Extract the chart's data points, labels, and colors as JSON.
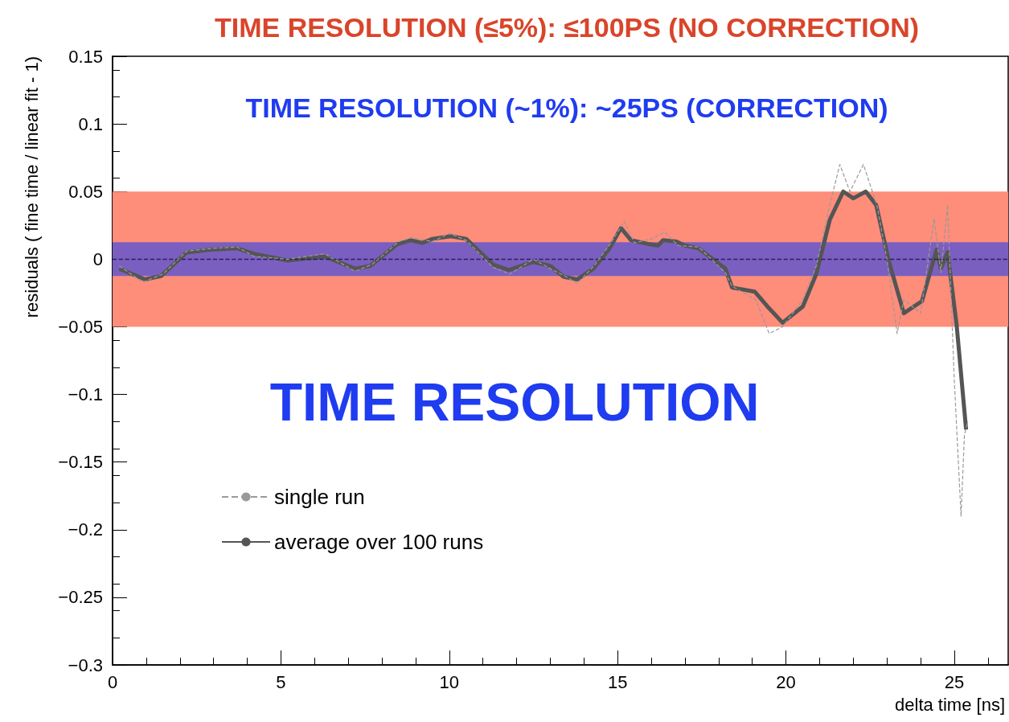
{
  "chart_data": {
    "type": "line",
    "title": "TIME RESOLUTION (≤5%): ≤100PS (NO CORRECTION)",
    "subtitle": "TIME RESOLUTION (~1%): ~25PS (CORRECTION)",
    "annotations": [
      "TIME RESOLUTION"
    ],
    "xlabel": "delta time [ns]",
    "ylabel": "residuals ( fine time / linear fit - 1)",
    "xlim": [
      0,
      26.6
    ],
    "xticks": [
      0,
      5,
      10,
      15,
      20,
      25
    ],
    "ylim": [
      -0.3,
      0.15
    ],
    "yticks": [
      {
        "value": -0.3,
        "label": "−0.3"
      },
      {
        "value": -0.25,
        "label": "−0.25"
      },
      {
        "value": -0.2,
        "label": "−0.2"
      },
      {
        "value": -0.15,
        "label": "−0.15"
      },
      {
        "value": -0.1,
        "label": "−0.1"
      },
      {
        "value": -0.05,
        "label": "−0.05"
      },
      0,
      0.05,
      0.1,
      0.15
    ],
    "grid": false,
    "legend": "bottom left",
    "bands": [
      {
        "axis": "y",
        "from": -0.05,
        "to": 0.05,
        "color": "#fe8d7a"
      },
      {
        "axis": "y",
        "from": -0.0125,
        "to": 0.0125,
        "color": "#7b5fc0"
      }
    ],
    "ref_lines": [
      {
        "axis": "y",
        "value": 0,
        "color": "#2a1f5e",
        "line_style": "dashed"
      }
    ],
    "series": [
      {
        "name": "single run",
        "color": "#9a9a9a",
        "line_style": "dashed",
        "x": [
          0.2,
          0.9,
          1.5,
          2.2,
          3.0,
          3.7,
          4.2,
          5.2,
          6.3,
          7.2,
          7.7,
          8.5,
          8.9,
          9.5,
          10.0,
          10.5,
          11.3,
          11.8,
          12.5,
          13.0,
          13.4,
          13.8,
          14.3,
          14.8,
          15.2,
          15.5,
          16.0,
          16.4,
          16.8,
          17.4,
          18.2,
          18.4,
          19.1,
          19.5,
          19.9,
          20.5,
          20.9,
          21.3,
          21.6,
          21.9,
          22.3,
          22.7,
          23.0,
          23.3,
          23.5,
          24.0,
          24.4,
          24.6,
          24.8,
          25.0,
          25.2,
          25.3,
          25.4
        ],
        "values": [
          -0.005,
          -0.017,
          -0.011,
          0.006,
          0.008,
          0.009,
          0.002,
          0.0,
          0.004,
          -0.009,
          -0.004,
          0.013,
          0.016,
          0.013,
          0.019,
          0.014,
          -0.006,
          -0.011,
          0.0,
          -0.007,
          -0.012,
          -0.018,
          -0.005,
          0.012,
          0.028,
          0.012,
          0.015,
          0.02,
          0.01,
          0.009,
          -0.01,
          -0.02,
          -0.03,
          -0.055,
          -0.05,
          -0.03,
          -0.005,
          0.04,
          0.07,
          0.05,
          0.07,
          0.04,
          0.0,
          -0.055,
          -0.03,
          -0.04,
          0.03,
          -0.01,
          0.04,
          -0.09,
          -0.19,
          -0.13,
          -0.12
        ]
      },
      {
        "name": "average over 100 runs",
        "color": "#555555",
        "line_style": "solid",
        "x": [
          0.2,
          0.96,
          1.44,
          2.2,
          2.9,
          3.7,
          4.2,
          5.2,
          6.3,
          7.2,
          7.65,
          8.45,
          8.85,
          9.2,
          9.5,
          10.05,
          10.5,
          11.3,
          11.77,
          12.5,
          13.0,
          13.4,
          13.8,
          14.28,
          14.76,
          15.1,
          15.4,
          15.95,
          16.2,
          16.35,
          16.75,
          17.0,
          17.4,
          18.2,
          18.4,
          19.07,
          19.45,
          19.9,
          20.5,
          20.9,
          21.3,
          21.7,
          22.0,
          22.37,
          22.68,
          23.05,
          23.5,
          24.04,
          24.47,
          24.6,
          24.8,
          25.07,
          25.35
        ],
        "values": [
          -0.007,
          -0.015,
          -0.0125,
          0.005,
          0.007,
          0.008,
          0.004,
          -0.001,
          0.002,
          -0.007,
          -0.005,
          0.011,
          0.014,
          0.012,
          0.015,
          0.017,
          0.015,
          -0.004,
          -0.008,
          -0.002,
          -0.005,
          -0.013,
          -0.015,
          -0.007,
          0.008,
          0.023,
          0.014,
          0.011,
          0.01,
          0.014,
          0.013,
          0.01,
          0.008,
          -0.007,
          -0.021,
          -0.024,
          -0.035,
          -0.047,
          -0.035,
          -0.011,
          0.029,
          0.05,
          0.045,
          0.05,
          0.04,
          -0.001,
          -0.04,
          -0.031,
          0.007,
          -0.007,
          0.005,
          -0.049,
          -0.126
        ]
      }
    ]
  }
}
